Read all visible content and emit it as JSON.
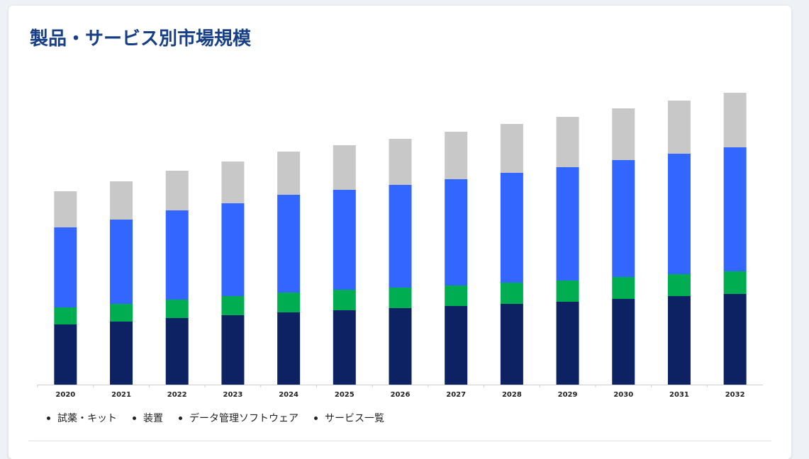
{
  "header": {
    "title": "製品・サービス別市場規模"
  },
  "legend": {
    "items": [
      {
        "label": "試薬・キット"
      },
      {
        "label": "装置"
      },
      {
        "label": "データ管理ソフトウェア"
      },
      {
        "label": "サービス一覧"
      }
    ]
  },
  "colors": {
    "bottom": "#0c2262",
    "green": "#00ad50",
    "blue": "#3366ff",
    "gray": "#c8c8c8"
  },
  "chart_data": {
    "type": "bar",
    "stacked": true,
    "title": "製品・サービス別市場規模",
    "xlabel": "",
    "ylabel": "",
    "y_axis_visible": false,
    "grid": false,
    "ylim": [
      0,
      415
    ],
    "categories": [
      "2020",
      "2021",
      "2022",
      "2023",
      "2024",
      "2025",
      "2026",
      "2027",
      "2028",
      "2029",
      "2030",
      "2031",
      "2032"
    ],
    "series": [
      {
        "color": "#0c2262",
        "values": [
          85,
          89,
          94,
          98,
          102,
          105,
          108,
          111,
          114,
          117,
          121,
          125,
          128
        ]
      },
      {
        "color": "#00ad50",
        "values": [
          24,
          25,
          26,
          27,
          28,
          29,
          29,
          29,
          30,
          30,
          31,
          31,
          32
        ]
      },
      {
        "color": "#3366ff",
        "values": [
          113,
          119,
          126,
          131,
          138,
          141,
          145,
          150,
          155,
          160,
          165,
          170,
          175
        ]
      },
      {
        "color": "#c8c8c8",
        "values": [
          51,
          54,
          56,
          59,
          61,
          63,
          65,
          67,
          69,
          71,
          73,
          75,
          77
        ]
      }
    ]
  }
}
